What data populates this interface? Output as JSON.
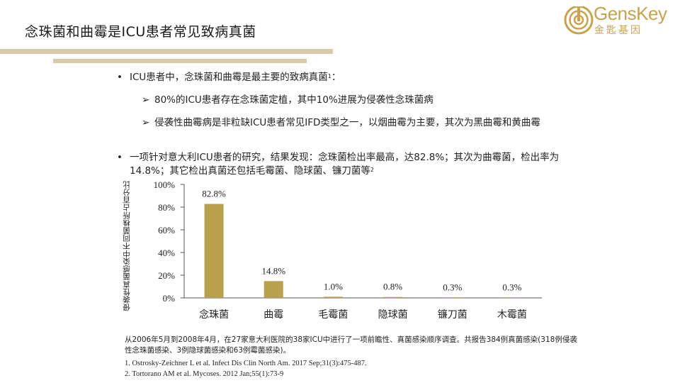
{
  "title": "念珠菌和曲霉是ICU患者常见致病真菌",
  "logo": {
    "brand": "GensKey",
    "cn": "金匙基因"
  },
  "bullet1": {
    "text": "ICU患者中，念珠菌和曲霉是最主要的致病真菌",
    "sup": "1",
    "tail": "："
  },
  "sub1": "80%的ICU患者存在念珠菌定植，其中10%进展为侵袭性念珠菌病",
  "sub2": "侵袭性曲霉病是非粒缺ICU患者常见IFD类型之一，以烟曲霉为主要，其次为黑曲霉和黄曲霉",
  "bullet2": {
    "text": "一项针对意大利ICU患者的研究，结果发现：念珠菌检出率最高，达82.8%；其次为曲霉菌，检出率为14.8%；其它检出真菌还包括毛霉菌、隐球菌、镰刀菌等",
    "sup": "2"
  },
  "chart_data": {
    "type": "bar",
    "categories": [
      "念珠菌",
      "曲霉",
      "毛霉菌",
      "隐球菌",
      "镰刀菌",
      "木霉菌"
    ],
    "values": [
      82.8,
      14.8,
      1.0,
      0.8,
      0.3,
      0.3
    ],
    "data_labels": [
      "82.8%",
      "14.8%",
      "1.0%",
      "0.8%",
      "0.3%",
      "0.3%"
    ],
    "ylabel": "侵袭性真菌感染中不同菌株所占百分比",
    "xlabel": "",
    "ylim": [
      0,
      100
    ],
    "yticks": [
      "0%",
      "20%",
      "40%",
      "60%",
      "80%",
      "100%"
    ],
    "bar_color": "#b8a04c",
    "grid": false
  },
  "footnote": "从2006年5月到2008年4月，在27家意大利医院的38家ICU中进行了一项前瞻性、真菌感染顺序调查。共报告384例真菌感染(318例侵袭性念珠菌感染、3例隐球菌感染和63例霉菌感染)。",
  "refs": [
    "1. Ostrosky-Zeichner L et al. Infect Dis Clin North Am. 2017 Sep;31(3):475-487.",
    "2. Tortorano AM et al. Mycoses. 2012 Jan;55(1):73-9"
  ],
  "colors": {
    "accent": "#c9a24a",
    "rule": "#d6cba7",
    "bar": "#b8a04c"
  }
}
